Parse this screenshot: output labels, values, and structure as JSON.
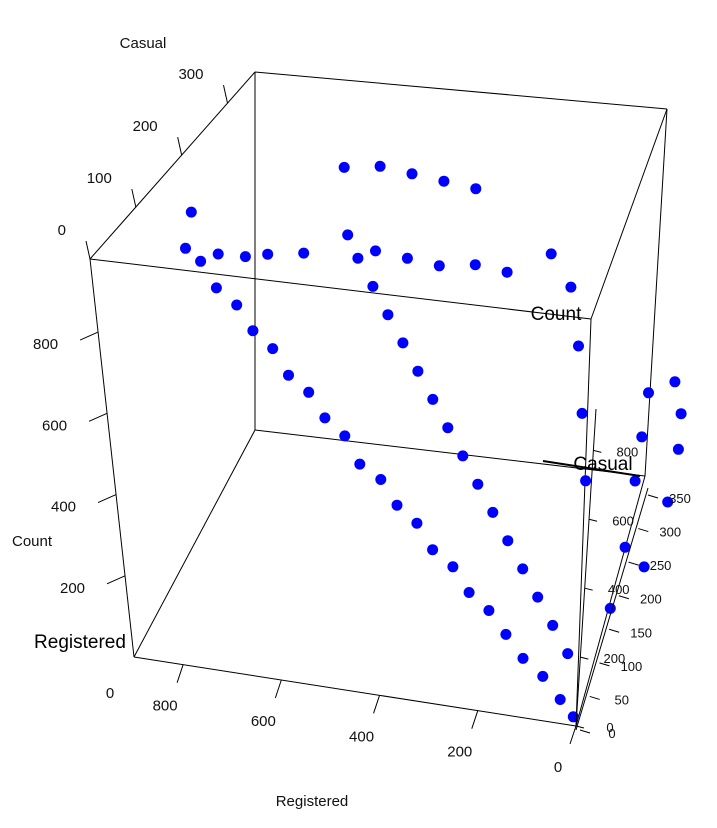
{
  "chart_data": {
    "type": "scatter",
    "projection": "3d",
    "title": "",
    "point_color": "#0000ff",
    "line_color": "#000000",
    "axes": {
      "registered": {
        "label": "Registered",
        "ticks": [
          "0",
          "200",
          "400",
          "600",
          "800"
        ],
        "range": [
          0,
          900
        ]
      },
      "casual": {
        "label": "Casual",
        "ticks": [
          "0",
          "100",
          "200",
          "300"
        ],
        "range": [
          0,
          360
        ]
      },
      "count": {
        "label": "Count",
        "ticks": [
          "200",
          "400",
          "600",
          "800"
        ],
        "range": [
          0,
          980
        ]
      }
    },
    "overlaid_axes": {
      "casual_small": {
        "ticks": [
          "0",
          "50",
          "100",
          "150",
          "200",
          "250",
          "300",
          "350"
        ]
      },
      "registered_small": {
        "ticks": [
          "0",
          "200",
          "400",
          "600",
          "800"
        ]
      },
      "label_a": "Count",
      "label_b": "Casual",
      "label_c": "Registered",
      "tick_left_zero": "0"
    },
    "series": [
      {
        "points": [
          [
            10,
            5,
            15
          ],
          [
            40,
            8,
            48
          ],
          [
            80,
            12,
            92
          ],
          [
            120,
            10,
            130
          ],
          [
            160,
            15,
            175
          ],
          [
            200,
            20,
            220
          ],
          [
            240,
            18,
            258
          ],
          [
            280,
            25,
            305
          ],
          [
            320,
            22,
            342
          ],
          [
            360,
            30,
            390
          ],
          [
            400,
            28,
            428
          ],
          [
            440,
            35,
            475
          ],
          [
            480,
            30,
            510
          ],
          [
            520,
            40,
            560
          ],
          [
            560,
            38,
            598
          ],
          [
            600,
            45,
            645
          ],
          [
            640,
            42,
            682
          ],
          [
            680,
            50,
            730
          ],
          [
            720,
            48,
            768
          ],
          [
            760,
            55,
            815
          ],
          [
            800,
            52,
            852
          ],
          [
            840,
            60,
            900
          ],
          [
            870,
            58,
            928
          ],
          [
            886,
            91,
            977
          ],
          [
            60,
            50,
            110
          ],
          [
            100,
            60,
            160
          ],
          [
            140,
            70,
            210
          ],
          [
            180,
            80,
            260
          ],
          [
            220,
            90,
            310
          ],
          [
            260,
            100,
            360
          ],
          [
            300,
            110,
            410
          ],
          [
            340,
            120,
            460
          ],
          [
            380,
            130,
            510
          ],
          [
            420,
            140,
            560
          ],
          [
            460,
            150,
            610
          ],
          [
            500,
            160,
            660
          ],
          [
            540,
            170,
            710
          ],
          [
            580,
            180,
            760
          ],
          [
            620,
            190,
            810
          ],
          [
            30,
            120,
            150
          ],
          [
            50,
            180,
            230
          ],
          [
            80,
            240,
            320
          ],
          [
            100,
            280,
            380
          ],
          [
            120,
            320,
            440
          ],
          [
            150,
            200,
            350
          ],
          [
            200,
            250,
            450
          ],
          [
            250,
            300,
            550
          ],
          [
            300,
            340,
            640
          ],
          [
            350,
            350,
            700
          ],
          [
            400,
            300,
            700
          ],
          [
            450,
            280,
            730
          ],
          [
            500,
            250,
            750
          ],
          [
            550,
            230,
            780
          ],
          [
            600,
            210,
            810
          ],
          [
            650,
            200,
            850
          ],
          [
            700,
            150,
            850
          ],
          [
            750,
            120,
            870
          ],
          [
            780,
            100,
            880
          ],
          [
            820,
            80,
            900
          ],
          [
            20,
            250,
            270
          ],
          [
            40,
            300,
            340
          ],
          [
            60,
            330,
            390
          ],
          [
            90,
            350,
            440
          ],
          [
            10,
            180,
            190
          ],
          [
            700,
            250,
            950
          ],
          [
            650,
            280,
            930
          ],
          [
            600,
            300,
            900
          ],
          [
            550,
            320,
            870
          ],
          [
            500,
            340,
            840
          ]
        ]
      }
    ]
  }
}
